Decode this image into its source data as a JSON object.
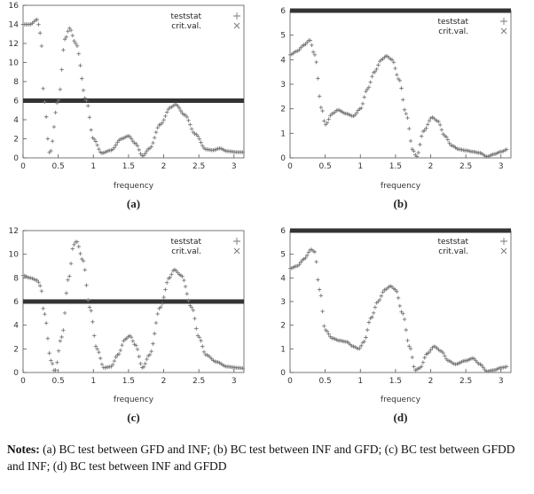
{
  "chart_data": [
    {
      "id": "a",
      "type": "scatter",
      "caption": "(a)",
      "xlabel": "frequency",
      "xlim": [
        0,
        3.14159
      ],
      "ylim": [
        0,
        16
      ],
      "xticks": [
        "0",
        "0.5",
        "1",
        "1.5",
        "2",
        "2.5",
        "3"
      ],
      "yticks": [
        "0",
        "2",
        "4",
        "6",
        "8",
        "10",
        "12",
        "14",
        "16"
      ],
      "legend": {
        "placement": "top-right",
        "entries": [
          "teststat",
          "crit.val."
        ]
      },
      "series": [
        {
          "name": "teststat",
          "marker": "+",
          "points": [
            [
              0,
              14
            ],
            [
              0.1,
              14
            ],
            [
              0.2,
              14.5
            ],
            [
              0.25,
              13
            ],
            [
              0.3,
              6
            ],
            [
              0.38,
              0.5
            ],
            [
              0.5,
              6
            ],
            [
              0.6,
              12.5
            ],
            [
              0.66,
              13.6
            ],
            [
              0.75,
              12
            ],
            [
              0.9,
              6
            ],
            [
              1.0,
              2
            ],
            [
              1.12,
              0.5
            ],
            [
              1.25,
              0.8
            ],
            [
              1.4,
              2
            ],
            [
              1.5,
              2.3
            ],
            [
              1.6,
              1.5
            ],
            [
              1.7,
              0.2
            ],
            [
              1.8,
              1
            ],
            [
              1.95,
              3.5
            ],
            [
              2.1,
              5.3
            ],
            [
              2.17,
              5.6
            ],
            [
              2.3,
              4.5
            ],
            [
              2.45,
              2.5
            ],
            [
              2.6,
              0.9
            ],
            [
              2.7,
              0.8
            ],
            [
              2.8,
              1
            ],
            [
              2.9,
              0.7
            ],
            [
              3.05,
              0.6
            ],
            [
              3.14,
              0.6
            ]
          ]
        },
        {
          "name": "crit.val.",
          "marker": "x",
          "points": [
            [
              0,
              6
            ],
            [
              3.14159,
              6
            ]
          ]
        }
      ]
    },
    {
      "id": "b",
      "type": "scatter",
      "caption": "(b)",
      "xlabel": "frequency",
      "xlim": [
        0,
        3.14159
      ],
      "ylim": [
        0,
        6
      ],
      "xticks": [
        "0",
        "0.5",
        "1",
        "1.5",
        "2",
        "2.5",
        "3"
      ],
      "yticks": [
        "0",
        "1",
        "2",
        "3",
        "4",
        "5",
        "6"
      ],
      "legend": {
        "placement": "top-right",
        "entries": [
          "teststat",
          "crit.val."
        ]
      },
      "series": [
        {
          "name": "teststat",
          "marker": "+",
          "points": [
            [
              0,
              4.2
            ],
            [
              0.1,
              4.35
            ],
            [
              0.2,
              4.6
            ],
            [
              0.28,
              4.8
            ],
            [
              0.35,
              4.2
            ],
            [
              0.45,
              2
            ],
            [
              0.5,
              1.35
            ],
            [
              0.6,
              1.8
            ],
            [
              0.68,
              1.95
            ],
            [
              0.8,
              1.8
            ],
            [
              0.9,
              1.7
            ],
            [
              1.0,
              2
            ],
            [
              1.1,
              2.8
            ],
            [
              1.2,
              3.5
            ],
            [
              1.3,
              4.0
            ],
            [
              1.37,
              4.15
            ],
            [
              1.45,
              4.0
            ],
            [
              1.55,
              3.2
            ],
            [
              1.65,
              1.8
            ],
            [
              1.75,
              0.3
            ],
            [
              1.8,
              0.05
            ],
            [
              1.9,
              1.1
            ],
            [
              2.02,
              1.65
            ],
            [
              2.1,
              1.5
            ],
            [
              2.2,
              0.9
            ],
            [
              2.3,
              0.5
            ],
            [
              2.4,
              0.35
            ],
            [
              2.5,
              0.3
            ],
            [
              2.6,
              0.25
            ],
            [
              2.7,
              0.2
            ],
            [
              2.8,
              0.05
            ],
            [
              2.9,
              0.15
            ],
            [
              3.0,
              0.25
            ],
            [
              3.1,
              0.35
            ]
          ]
        },
        {
          "name": "crit.val.",
          "marker": "x",
          "points": [
            [
              0,
              6
            ],
            [
              3.14159,
              6
            ]
          ]
        }
      ]
    },
    {
      "id": "c",
      "type": "scatter",
      "caption": "(c)",
      "xlabel": "frequency",
      "xlim": [
        0,
        3.14159
      ],
      "ylim": [
        0,
        12
      ],
      "xticks": [
        "0",
        "0.5",
        "1",
        "1.5",
        "2",
        "2.5",
        "3"
      ],
      "yticks": [
        "0",
        "2",
        "4",
        "6",
        "8",
        "10",
        "12"
      ],
      "legend": {
        "placement": "top-right",
        "entries": [
          "teststat",
          "crit.val."
        ]
      },
      "series": [
        {
          "name": "teststat",
          "marker": "+",
          "points": [
            [
              0,
              8.2
            ],
            [
              0.1,
              8.0
            ],
            [
              0.2,
              7.8
            ],
            [
              0.25,
              7.3
            ],
            [
              0.3,
              5
            ],
            [
              0.4,
              1
            ],
            [
              0.45,
              0.1
            ],
            [
              0.55,
              3
            ],
            [
              0.65,
              8
            ],
            [
              0.72,
              10.8
            ],
            [
              0.76,
              11.1
            ],
            [
              0.85,
              9.5
            ],
            [
              0.95,
              5.5
            ],
            [
              1.05,
              2
            ],
            [
              1.15,
              0.4
            ],
            [
              1.25,
              0.5
            ],
            [
              1.35,
              1.5
            ],
            [
              1.45,
              2.8
            ],
            [
              1.52,
              3.1
            ],
            [
              1.6,
              2.3
            ],
            [
              1.7,
              0.4
            ],
            [
              1.8,
              1.5
            ],
            [
              1.95,
              5.5
            ],
            [
              2.08,
              8
            ],
            [
              2.15,
              8.7
            ],
            [
              2.25,
              8.2
            ],
            [
              2.4,
              5.5
            ],
            [
              2.5,
              3
            ],
            [
              2.6,
              1.5
            ],
            [
              2.75,
              0.9
            ],
            [
              2.9,
              0.5
            ],
            [
              3.05,
              0.4
            ],
            [
              3.14,
              0.35
            ]
          ]
        },
        {
          "name": "crit.val.",
          "marker": "x",
          "points": [
            [
              0,
              6
            ],
            [
              3.14159,
              6
            ]
          ]
        }
      ]
    },
    {
      "id": "d",
      "type": "scatter",
      "caption": "(d)",
      "xlabel": "frequency",
      "xlim": [
        0,
        3.14159
      ],
      "ylim": [
        0,
        6
      ],
      "xticks": [
        "0",
        "0.5",
        "1",
        "1.5",
        "2",
        "2.5",
        "3"
      ],
      "yticks": [
        "0",
        "1",
        "2",
        "3",
        "4",
        "5",
        "6"
      ],
      "legend": {
        "placement": "top-right",
        "entries": [
          "teststat",
          "crit.val."
        ]
      },
      "series": [
        {
          "name": "teststat",
          "marker": "+",
          "points": [
            [
              0,
              4.4
            ],
            [
              0.1,
              4.5
            ],
            [
              0.2,
              4.8
            ],
            [
              0.3,
              5.2
            ],
            [
              0.35,
              5.1
            ],
            [
              0.42,
              3.5
            ],
            [
              0.5,
              1.8
            ],
            [
              0.6,
              1.45
            ],
            [
              0.7,
              1.35
            ],
            [
              0.8,
              1.3
            ],
            [
              0.9,
              1.1
            ],
            [
              0.98,
              1.0
            ],
            [
              1.05,
              1.3
            ],
            [
              1.15,
              2.3
            ],
            [
              1.25,
              3.0
            ],
            [
              1.35,
              3.5
            ],
            [
              1.43,
              3.65
            ],
            [
              1.5,
              3.5
            ],
            [
              1.6,
              2.5
            ],
            [
              1.7,
              1.1
            ],
            [
              1.78,
              0.1
            ],
            [
              1.85,
              0.2
            ],
            [
              1.95,
              0.8
            ],
            [
              2.05,
              1.1
            ],
            [
              2.15,
              0.9
            ],
            [
              2.25,
              0.5
            ],
            [
              2.35,
              0.35
            ],
            [
              2.5,
              0.5
            ],
            [
              2.6,
              0.6
            ],
            [
              2.7,
              0.35
            ],
            [
              2.8,
              0.05
            ],
            [
              2.9,
              0.1
            ],
            [
              3.0,
              0.2
            ],
            [
              3.1,
              0.25
            ]
          ]
        },
        {
          "name": "crit.val.",
          "marker": "x",
          "points": [
            [
              0,
              6
            ],
            [
              3.14159,
              6
            ]
          ]
        }
      ]
    }
  ],
  "notes": {
    "label": "Notes:",
    "text": " (a) BC test between GFD and INF; (b) BC test between INF and GFD; (c) BC test between GFDD and INF; (d) BC test between INF and GFDD"
  },
  "colors": {
    "teststat": "#777777",
    "critval": "#333333",
    "axis": "#555555"
  }
}
